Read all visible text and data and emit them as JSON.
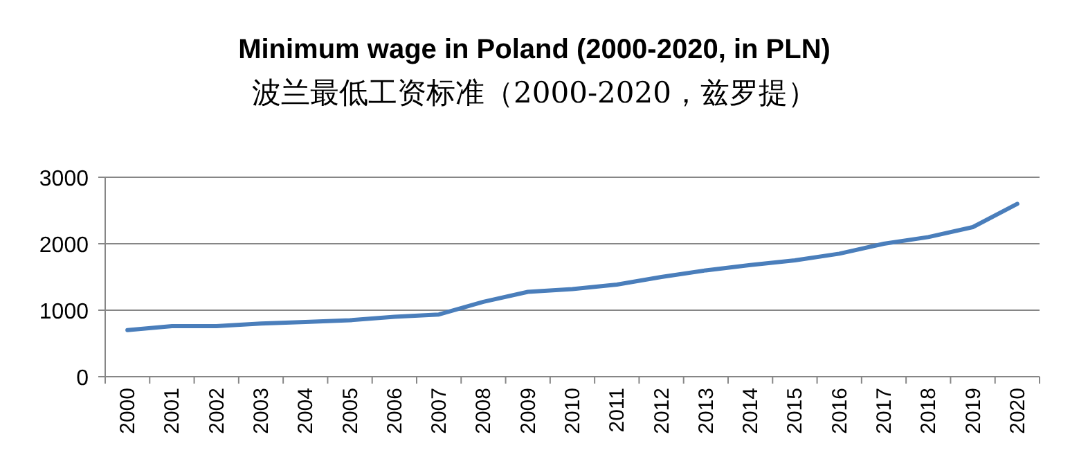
{
  "chart_data": {
    "type": "line",
    "title": "Minimum wage in Poland (2000-2020, in PLN)",
    "subtitle": "波兰最低工资标准（2000-2020，兹罗提）",
    "categories": [
      "2000",
      "2001",
      "2002",
      "2003",
      "2004",
      "2005",
      "2006",
      "2007",
      "2008",
      "2009",
      "2010",
      "2011",
      "2012",
      "2013",
      "2014",
      "2015",
      "2016",
      "2017",
      "2018",
      "2019",
      "2020"
    ],
    "series": [
      {
        "color": "#4a7ebb",
        "values": [
          700,
          760,
          760,
          800,
          824,
          849,
          900,
          936,
          1126,
          1276,
          1317,
          1386,
          1500,
          1600,
          1680,
          1750,
          1850,
          2000,
          2100,
          2250,
          2600
        ]
      }
    ],
    "ylim": [
      0,
      3000
    ],
    "yticks": [
      0,
      1000,
      2000,
      3000
    ],
    "grid": "y"
  }
}
